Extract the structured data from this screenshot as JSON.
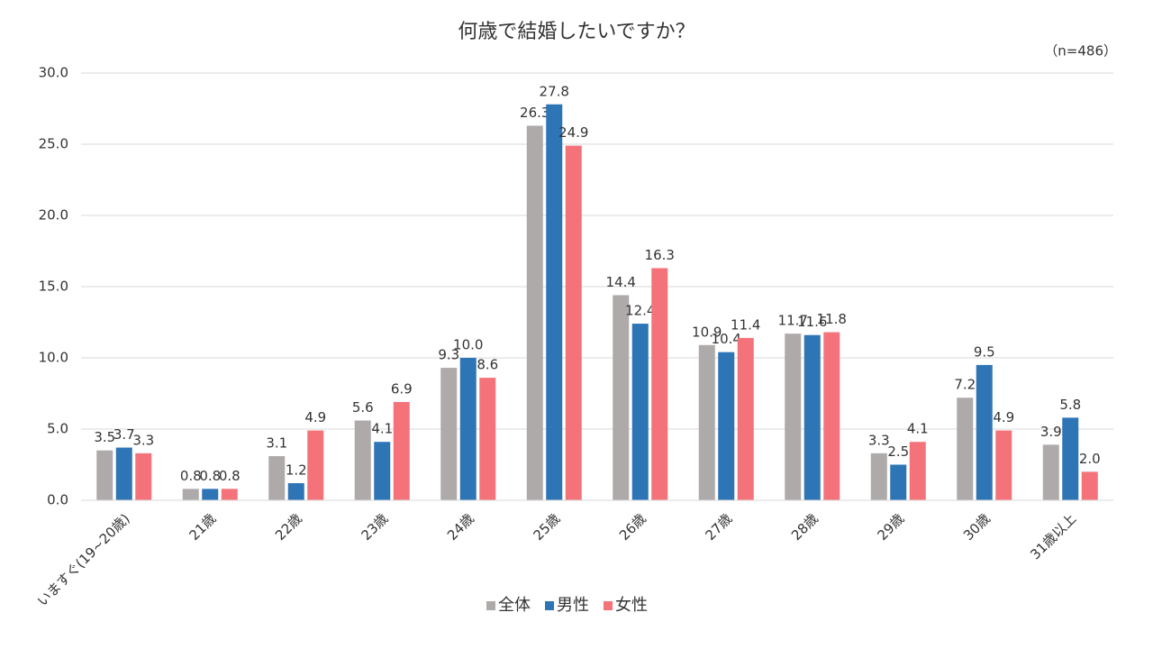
{
  "chart_data": {
    "type": "bar",
    "title": "何歳で結婚したいですか？",
    "note": "（n=486）",
    "categories": [
      "いますぐ(19~20歳)",
      "21歳",
      "22歳",
      "23歳",
      "24歳",
      "25歳",
      "26歳",
      "27歳",
      "28歳",
      "29歳",
      "30歳",
      "31歳以上"
    ],
    "series": [
      {
        "name": "全体",
        "color": "#aeaaaa",
        "values": [
          3.5,
          0.8,
          3.1,
          5.6,
          9.3,
          26.3,
          14.4,
          10.9,
          11.7,
          3.3,
          7.2,
          3.9
        ],
        "value_labels": [
          "3.5",
          "0.8",
          "3.1",
          "5.6",
          "9.3",
          "26.3",
          "14.4",
          "10.9",
          "11.7",
          "3.3",
          "7.2",
          "3.9"
        ]
      },
      {
        "name": "男性",
        "color": "#2e75b6",
        "values": [
          3.7,
          0.8,
          1.2,
          4.1,
          10,
          27.8,
          12.4,
          10.4,
          11.6,
          2.5,
          9.5,
          5.8
        ],
        "value_labels": [
          "3.7",
          "0.8",
          "1.2",
          "4.1",
          "10.0",
          "27.8",
          "12.4",
          "10.4",
          "11.6",
          "2.5",
          "9.5",
          "5.8"
        ]
      },
      {
        "name": "女性",
        "color": "#f4737a",
        "values": [
          3.3,
          0.8,
          4.9,
          6.9,
          8.6,
          24.9,
          16.3,
          11.4,
          11.8,
          4.1,
          4.9,
          2
        ],
        "value_labels": [
          "3.3",
          "0.8",
          "4.9",
          "6.9",
          "8.6",
          "24.9",
          "16.3",
          "11.4",
          "11.8",
          "4.1",
          "4.9",
          "2.0"
        ]
      }
    ],
    "ylim": [
      0,
      30
    ],
    "yticks": [
      {
        "value": 0,
        "label": "0.0"
      },
      {
        "value": 5,
        "label": "5.0"
      },
      {
        "value": 10,
        "label": "10.0"
      },
      {
        "value": 15,
        "label": "15.0"
      },
      {
        "value": 20,
        "label": "20.0"
      },
      {
        "value": 25,
        "label": "25.0"
      },
      {
        "value": 30,
        "label": "30.0"
      }
    ],
    "grid": true,
    "legend": "bottom"
  }
}
